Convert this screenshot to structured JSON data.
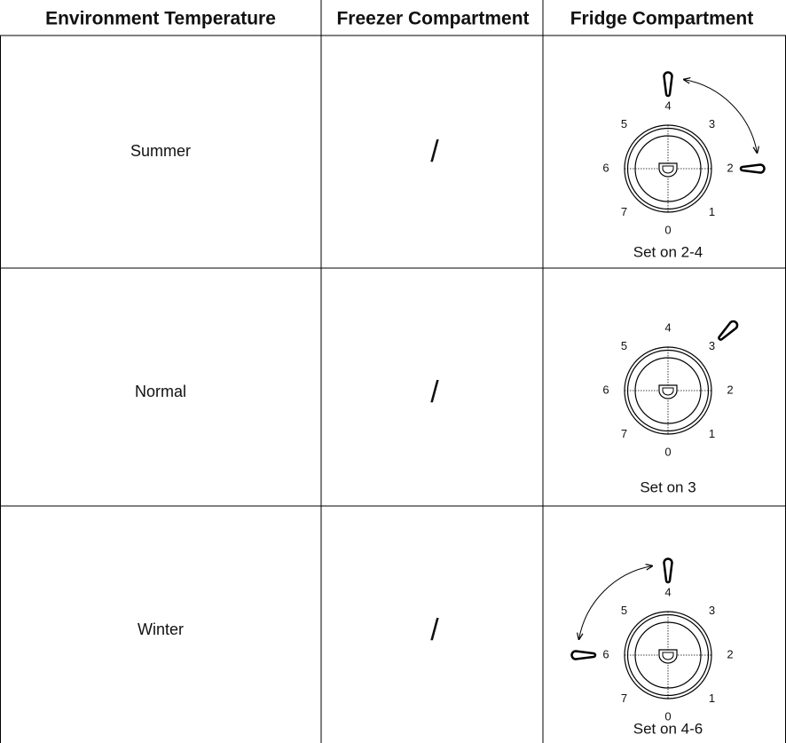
{
  "header": {
    "columns": [
      "Environment Temperature",
      "Freezer Compartment",
      "Fridge Compartment"
    ]
  },
  "table": {
    "rows": [
      {
        "environment": "Summer",
        "freezer": "/",
        "fridge_setting": "Set on 2-4"
      },
      {
        "environment": "Normal",
        "freezer": "/",
        "fridge_setting": "Set on 3"
      },
      {
        "environment": "Winter",
        "freezer": "/",
        "fridge_setting": "Set on 4-6"
      }
    ]
  },
  "dial_labels": [
    0,
    1,
    2,
    3,
    4,
    5,
    6,
    7
  ]
}
